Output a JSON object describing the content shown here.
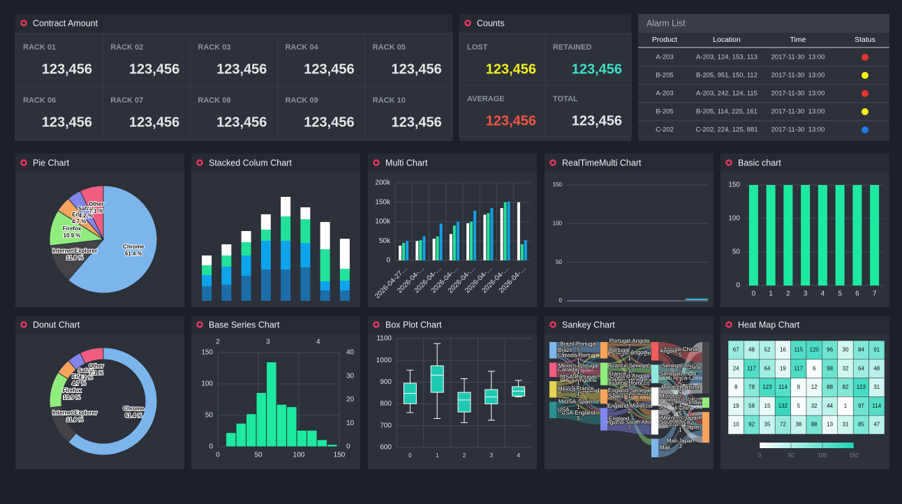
{
  "contract_amount": {
    "title": "Contract Amount",
    "items": [
      {
        "label": "RACK 01",
        "value": "123,456"
      },
      {
        "label": "RACK 02",
        "value": "123,456"
      },
      {
        "label": "RACK 03",
        "value": "123,456"
      },
      {
        "label": "RACK 04",
        "value": "123,456"
      },
      {
        "label": "RACK 05",
        "value": "123,456"
      },
      {
        "label": "RACK 06",
        "value": "123,456"
      },
      {
        "label": "RACK 07",
        "value": "123,456"
      },
      {
        "label": "RACK 08",
        "value": "123,456"
      },
      {
        "label": "RACK 09",
        "value": "123,456"
      },
      {
        "label": "RACK 10",
        "value": "123,456"
      }
    ]
  },
  "counts": {
    "title": "Counts",
    "items": [
      {
        "label": "LOST",
        "value": "123,456",
        "color": "#f3ee1e"
      },
      {
        "label": "RETAINED",
        "value": "123,456",
        "color": "#3fe0c6"
      },
      {
        "label": "AVERAGE",
        "value": "123,456",
        "color": "#f2553f"
      },
      {
        "label": "TOTAL",
        "value": "123,456",
        "color": "#e6e6e6"
      }
    ]
  },
  "alarm_list": {
    "title": "Alarm List",
    "columns": [
      "Product",
      "Location",
      "Time",
      "Status"
    ],
    "rows": [
      {
        "product": "A-203",
        "location": "A-203, 124, 153, 113",
        "time": "2017-11-30  13:00",
        "status": "#e8352f"
      },
      {
        "product": "B-205",
        "location": "B-205, 951, 150, 112",
        "time": "2017-11-30  13:00",
        "status": "#f5ee12"
      },
      {
        "product": "A-203",
        "location": "A-203, 242, 124, 115",
        "time": "2017-11-30  13:00",
        "status": "#e8352f"
      },
      {
        "product": "B-205",
        "location": "B-205, 114, 225, 161",
        "time": "2017-11-30  13:00",
        "status": "#f5ee12"
      },
      {
        "product": "C-202",
        "location": "C-202, 224, 125, 881",
        "time": "2017-11-30  13:00",
        "status": "#1e7be8"
      }
    ]
  },
  "chart_data": [
    {
      "type": "pie",
      "title": "Pie Chart",
      "categories": [
        "Chrome",
        "Internet Explorer",
        "Firefox",
        "Edge",
        "Safari",
        "Other"
      ],
      "values": [
        61.4,
        11.8,
        10.9,
        4.7,
        4.2,
        7.1
      ],
      "value_labels": [
        "61.4 %",
        "11.8 %",
        "10.9 %",
        "4.7 %",
        "4.2 %",
        "7.1 %"
      ],
      "colors": [
        "#7cb5ec",
        "#434348",
        "#90ed7d",
        "#f7a35c",
        "#8085e9",
        "#f15c80"
      ]
    },
    {
      "type": "bar",
      "title": "Stacked Colum Chart",
      "stacked": true,
      "series": [
        {
          "color": "#1c6ea8",
          "values": [
            21,
            23,
            36,
            45,
            45,
            48,
            15,
            15
          ]
        },
        {
          "color": "#0da4eb",
          "values": [
            16,
            26,
            29,
            41,
            41,
            35,
            13,
            14
          ]
        },
        {
          "color": "#22e29a",
          "values": [
            14,
            16,
            19,
            16,
            35,
            34,
            46,
            17
          ]
        },
        {
          "color": "#ffffff",
          "values": [
            14,
            16,
            16,
            22,
            28,
            17,
            39,
            43
          ]
        }
      ]
    },
    {
      "type": "bar",
      "title": "Multi Chart",
      "categories": [
        "2026-04-27…",
        "2026-04-…",
        "2026-04-…",
        "2026-04-…",
        "2026-04-…",
        "2026-04-…",
        "2026-04-…",
        "2026-04-…"
      ],
      "series": [
        {
          "color": "#ffffff",
          "values": [
            38000,
            50000,
            56000,
            68000,
            96000,
            118000,
            135000,
            150000
          ]
        },
        {
          "color": "#22e29a",
          "values": [
            45000,
            52000,
            62000,
            90000,
            100000,
            122000,
            150000,
            42000
          ]
        },
        {
          "color": "#12a0e6",
          "values": [
            50000,
            62000,
            95000,
            100000,
            128000,
            135000,
            152000,
            52000
          ]
        }
      ],
      "ylim": [
        0,
        200000
      ],
      "yticks": [
        0,
        {
          "value": 50000,
          "label": "50k"
        },
        {
          "value": 100000,
          "label": "100k"
        },
        {
          "value": 150000,
          "label": "150k"
        },
        {
          "value": 200000,
          "label": "200k"
        }
      ],
      "grid": true
    },
    {
      "type": "line",
      "title": "RealTimeMulti Chart",
      "ylim": [
        0,
        150
      ],
      "yticks": [
        0,
        50,
        100,
        150
      ],
      "grid": true,
      "series": [
        {
          "color": "#5b6271",
          "values": [
            0,
            0,
            0,
            0,
            0,
            0,
            0,
            0,
            0,
            0,
            0,
            0,
            0,
            0,
            0,
            0,
            0,
            0,
            0,
            0
          ]
        },
        {
          "color": "#3fc1d6",
          "values": [
            null,
            null,
            null,
            null,
            null,
            null,
            null,
            null,
            null,
            null,
            null,
            null,
            null,
            null,
            null,
            null,
            2,
            2,
            2,
            2
          ]
        }
      ]
    },
    {
      "type": "bar",
      "title": "Basic chart",
      "categories": [
        0,
        1,
        2,
        3,
        4,
        5,
        6,
        7
      ],
      "values": [
        150,
        150,
        150,
        150,
        150,
        150,
        150,
        150
      ],
      "color": "#1de9a0",
      "ylim": [
        0,
        150
      ],
      "yticks": [
        0,
        50,
        100,
        150
      ],
      "grid": true
    },
    {
      "type": "donut",
      "title": "Donut Chart",
      "categories": [
        "Chrome",
        "Internet Explorer",
        "Firefox",
        "Edge",
        "Safari",
        "Other"
      ],
      "values": [
        61.4,
        11.8,
        10.9,
        4.7,
        4.2,
        7.1
      ],
      "value_labels": [
        "61.4 %",
        "11.8 %",
        "10.9 %",
        "4.7 %",
        "4.2 %",
        "7.1 %"
      ],
      "colors": [
        "#7cb5ec",
        "#434348",
        "#90ed7d",
        "#f7a35c",
        "#8085e9",
        "#f15c80"
      ]
    },
    {
      "type": "histogram",
      "title": "Base Series Chart",
      "bins": [
        10,
        22.5,
        35,
        47.5,
        60,
        72.5,
        85,
        97.5,
        110,
        122.5,
        135,
        147.5
      ],
      "series": [
        {
          "axis": "y2",
          "color": "#1de9a0",
          "values": [
            6,
            10,
            14,
            23,
            36,
            18,
            17,
            7,
            7,
            3,
            1
          ]
        }
      ],
      "xlim": [
        0,
        150
      ],
      "xticks": [
        0,
        50,
        100,
        150
      ],
      "x2lim": [
        2,
        4.42
      ],
      "x2ticks": [
        2,
        3,
        4
      ],
      "ylim": [
        0,
        150
      ],
      "yticks": [
        0,
        50,
        100,
        150
      ],
      "y2lim": [
        0,
        40
      ],
      "y2ticks": [
        0,
        10,
        20,
        30,
        40
      ],
      "grid": true
    },
    {
      "type": "boxplot",
      "title": "Box Plot Chart",
      "categories": [
        0,
        1,
        2,
        3,
        4
      ],
      "color": "#1fc9b1",
      "boxes": [
        {
          "low": 760,
          "q1": 801,
          "median": 848,
          "q3": 895,
          "high": 955
        },
        {
          "low": 733,
          "q1": 853,
          "median": 932,
          "q3": 975,
          "high": 1077
        },
        {
          "low": 714,
          "q1": 763,
          "median": 818,
          "q3": 853,
          "high": 916
        },
        {
          "low": 725,
          "q1": 800,
          "median": 832,
          "q3": 866,
          "high": 950
        },
        {
          "low": 832,
          "q1": 836,
          "median": 859,
          "q3": 879,
          "high": 908
        }
      ],
      "ylim": [
        600,
        1100
      ],
      "yticks": [
        600,
        700,
        800,
        900,
        1000,
        1100
      ],
      "grid": true
    },
    {
      "type": "sankey",
      "title": "Sankey Chart",
      "nodes": [
        {
          "name": "Brazil",
          "color": "#7cb5ec"
        },
        {
          "name": "Canada",
          "color": "#f15c80"
        },
        {
          "name": "Mexico",
          "color": "#e4d354"
        },
        {
          "name": "USA",
          "color": "#2b908f"
        },
        {
          "name": "Portugal",
          "color": "#f7a35c"
        },
        {
          "name": "France",
          "color": "#90ed7d"
        },
        {
          "name": "Spain",
          "color": "#f7a35c"
        },
        {
          "name": "England",
          "color": "#8085e9"
        },
        {
          "name": "Angola",
          "color": "#f45b5b"
        },
        {
          "name": "Senegal",
          "color": "#91e8e1"
        },
        {
          "name": "Morocco",
          "color": "#ffffff"
        },
        {
          "name": "South Africa",
          "color": "#ffffff"
        },
        {
          "name": "Mali",
          "color": "#7cb5ec"
        },
        {
          "name": "China",
          "color": "#434348"
        },
        {
          "name": "India",
          "color": "#90ed7d"
        },
        {
          "name": "Japan",
          "color": "#f7a35c"
        }
      ],
      "links": [
        {
          "from": "Brazil",
          "to": "Portugal",
          "weight": 5,
          "label": "Brazil-Portugal"
        },
        {
          "from": "Brazil",
          "to": "France",
          "weight": 1,
          "label": "Brazil-France"
        },
        {
          "from": "Brazil",
          "to": "Spain",
          "weight": 1,
          "label": "Brazil-Spain"
        },
        {
          "from": "Brazil",
          "to": "England",
          "weight": 1,
          "label": "Brazil-England"
        },
        {
          "from": "Canada",
          "to": "Portugal",
          "weight": 1,
          "label": "Canada-Portugal"
        },
        {
          "from": "Canada",
          "to": "France",
          "weight": 5,
          "label": "Canada-France"
        },
        {
          "from": "Canada",
          "to": "England",
          "weight": 1,
          "label": "Canada-England"
        },
        {
          "from": "Mexico",
          "to": "Portugal",
          "weight": 1,
          "label": "Mexico-Portugal"
        },
        {
          "from": "Mexico",
          "to": "France",
          "weight": 1,
          "label": "Mexico-France"
        },
        {
          "from": "Mexico",
          "to": "Spain",
          "weight": 5,
          "label": "Mexico-Spain"
        },
        {
          "from": "Mexico",
          "to": "England",
          "weight": 1,
          "label": "Mexico-England"
        },
        {
          "from": "USA",
          "to": "Portugal",
          "weight": 1,
          "label": "USA-Portugal"
        },
        {
          "from": "USA",
          "to": "France",
          "weight": 1,
          "label": "USA-France"
        },
        {
          "from": "USA",
          "to": "Spain",
          "weight": 1,
          "label": "USA-Spain"
        },
        {
          "from": "USA",
          "to": "England",
          "weight": 5,
          "label": "USA-England"
        },
        {
          "from": "Portugal",
          "to": "Angola",
          "weight": 2,
          "label": "Portugal-Angola"
        },
        {
          "from": "Portugal",
          "to": "Senegal",
          "weight": 1,
          "label": "Portugal-Senegal"
        },
        {
          "from": "Portugal",
          "to": "Morocco",
          "weight": 1,
          "label": "Portugal-Morocco"
        },
        {
          "from": "Portugal",
          "to": "South Africa",
          "weight": 3,
          "label": "Portugal-South Africa"
        },
        {
          "from": "France",
          "to": "Angola",
          "weight": 1,
          "label": "France-Angola"
        },
        {
          "from": "France",
          "to": "Senegal",
          "weight": 3,
          "label": "France-Senegal"
        },
        {
          "from": "France",
          "to": "Mali",
          "weight": 3,
          "label": "France-Mali"
        },
        {
          "from": "France",
          "to": "Morocco",
          "weight": 3,
          "label": "France-Morocco"
        },
        {
          "from": "France",
          "to": "South Africa",
          "weight": 1,
          "label": "France-South Africa"
        },
        {
          "from": "Spain",
          "to": "Senegal",
          "weight": 1,
          "label": "Spain-Senegal"
        },
        {
          "from": "Spain",
          "to": "Morocco",
          "weight": 3,
          "label": "Spain-Morocco"
        },
        {
          "from": "Spain",
          "to": "South Africa",
          "weight": 1,
          "label": "Spain-South Africa"
        },
        {
          "from": "England",
          "to": "Angola",
          "weight": 1,
          "label": "England-Angola"
        },
        {
          "from": "England",
          "to": "Senegal",
          "weight": 1,
          "label": "England-Senegal"
        },
        {
          "from": "England",
          "to": "Morocco",
          "weight": 2,
          "label": "England-Morocco"
        },
        {
          "from": "England",
          "to": "South Africa",
          "weight": 7,
          "label": "England-South Africa"
        },
        {
          "from": "South Africa",
          "to": "China",
          "weight": 5,
          "label": "South Africa-China"
        },
        {
          "from": "South Africa",
          "to": "India",
          "weight": 1,
          "label": "South Africa-India"
        },
        {
          "from": "South Africa",
          "to": "Japan",
          "weight": 3,
          "label": "South Africa-Japan"
        },
        {
          "from": "Angola",
          "to": "China",
          "weight": 5,
          "label": "Angola-China"
        },
        {
          "from": "Angola",
          "to": "India",
          "weight": 1,
          "label": "Angola-India"
        },
        {
          "from": "Angola",
          "to": "Japan",
          "weight": 3,
          "label": "Angola-Japan"
        },
        {
          "from": "Senegal",
          "to": "China",
          "weight": 5,
          "label": "Senegal-China"
        },
        {
          "from": "Senegal",
          "to": "India",
          "weight": 1,
          "label": "Senegal-India"
        },
        {
          "from": "Senegal",
          "to": "Japan",
          "weight": 3,
          "label": "Senegal-Japan"
        },
        {
          "from": "Mali",
          "to": "China",
          "weight": 5,
          "label": "Mali-China"
        },
        {
          "from": "Mali",
          "to": "India",
          "weight": 1,
          "label": "Mali-India"
        },
        {
          "from": "Mali",
          "to": "Japan",
          "weight": 3,
          "label": "Mali-Japan"
        },
        {
          "from": "Morocco",
          "to": "China",
          "weight": 5,
          "label": "Morocco-China"
        },
        {
          "from": "Morocco",
          "to": "India",
          "weight": 1,
          "label": "Morocco-India"
        },
        {
          "from": "Morocco",
          "to": "Japan",
          "weight": 3,
          "label": "Morocco-Japan"
        }
      ]
    },
    {
      "type": "heatmap",
      "title": "Heat Map Chart",
      "values": [
        [
          67,
          48,
          52,
          16,
          115,
          120,
          96,
          30,
          84,
          91
        ],
        [
          24,
          117,
          64,
          19,
          117,
          6,
          98,
          32,
          64,
          48
        ],
        [
          8,
          78,
          123,
          114,
          8,
          12,
          88,
          82,
          123,
          31
        ],
        [
          19,
          58,
          15,
          132,
          5,
          32,
          44,
          1,
          97,
          114
        ],
        [
          10,
          92,
          35,
          72,
          38,
          88,
          13,
          31,
          85,
          47
        ]
      ],
      "colorlim": [
        0,
        150
      ],
      "colorticks": [
        0,
        50,
        100,
        150
      ],
      "colors": [
        "#ffffff",
        "#1dd4b4"
      ]
    }
  ]
}
